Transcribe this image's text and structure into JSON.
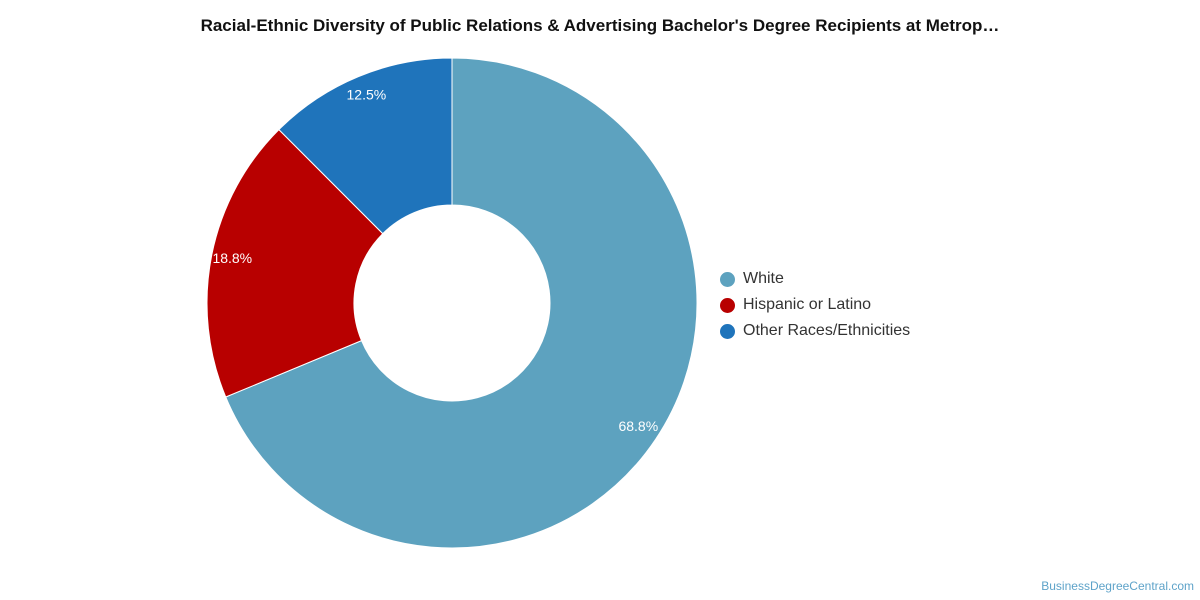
{
  "chart_data": {
    "type": "pie",
    "title": "Racial-Ethnic Diversity of Public Relations & Advertising Bachelor's Degree Recipients at Metrop…",
    "categories": [
      "White",
      "Hispanic or Latino",
      "Other Races/Ethnicities"
    ],
    "values": [
      68.8,
      18.8,
      12.5
    ],
    "value_labels": [
      "68.8%",
      "18.8%",
      "12.5%"
    ],
    "colors": [
      "#5da2bf",
      "#b80000",
      "#1f74bb"
    ],
    "donut": true,
    "legend_position": "right"
  },
  "watermark": "BusinessDegreeCentral.com"
}
